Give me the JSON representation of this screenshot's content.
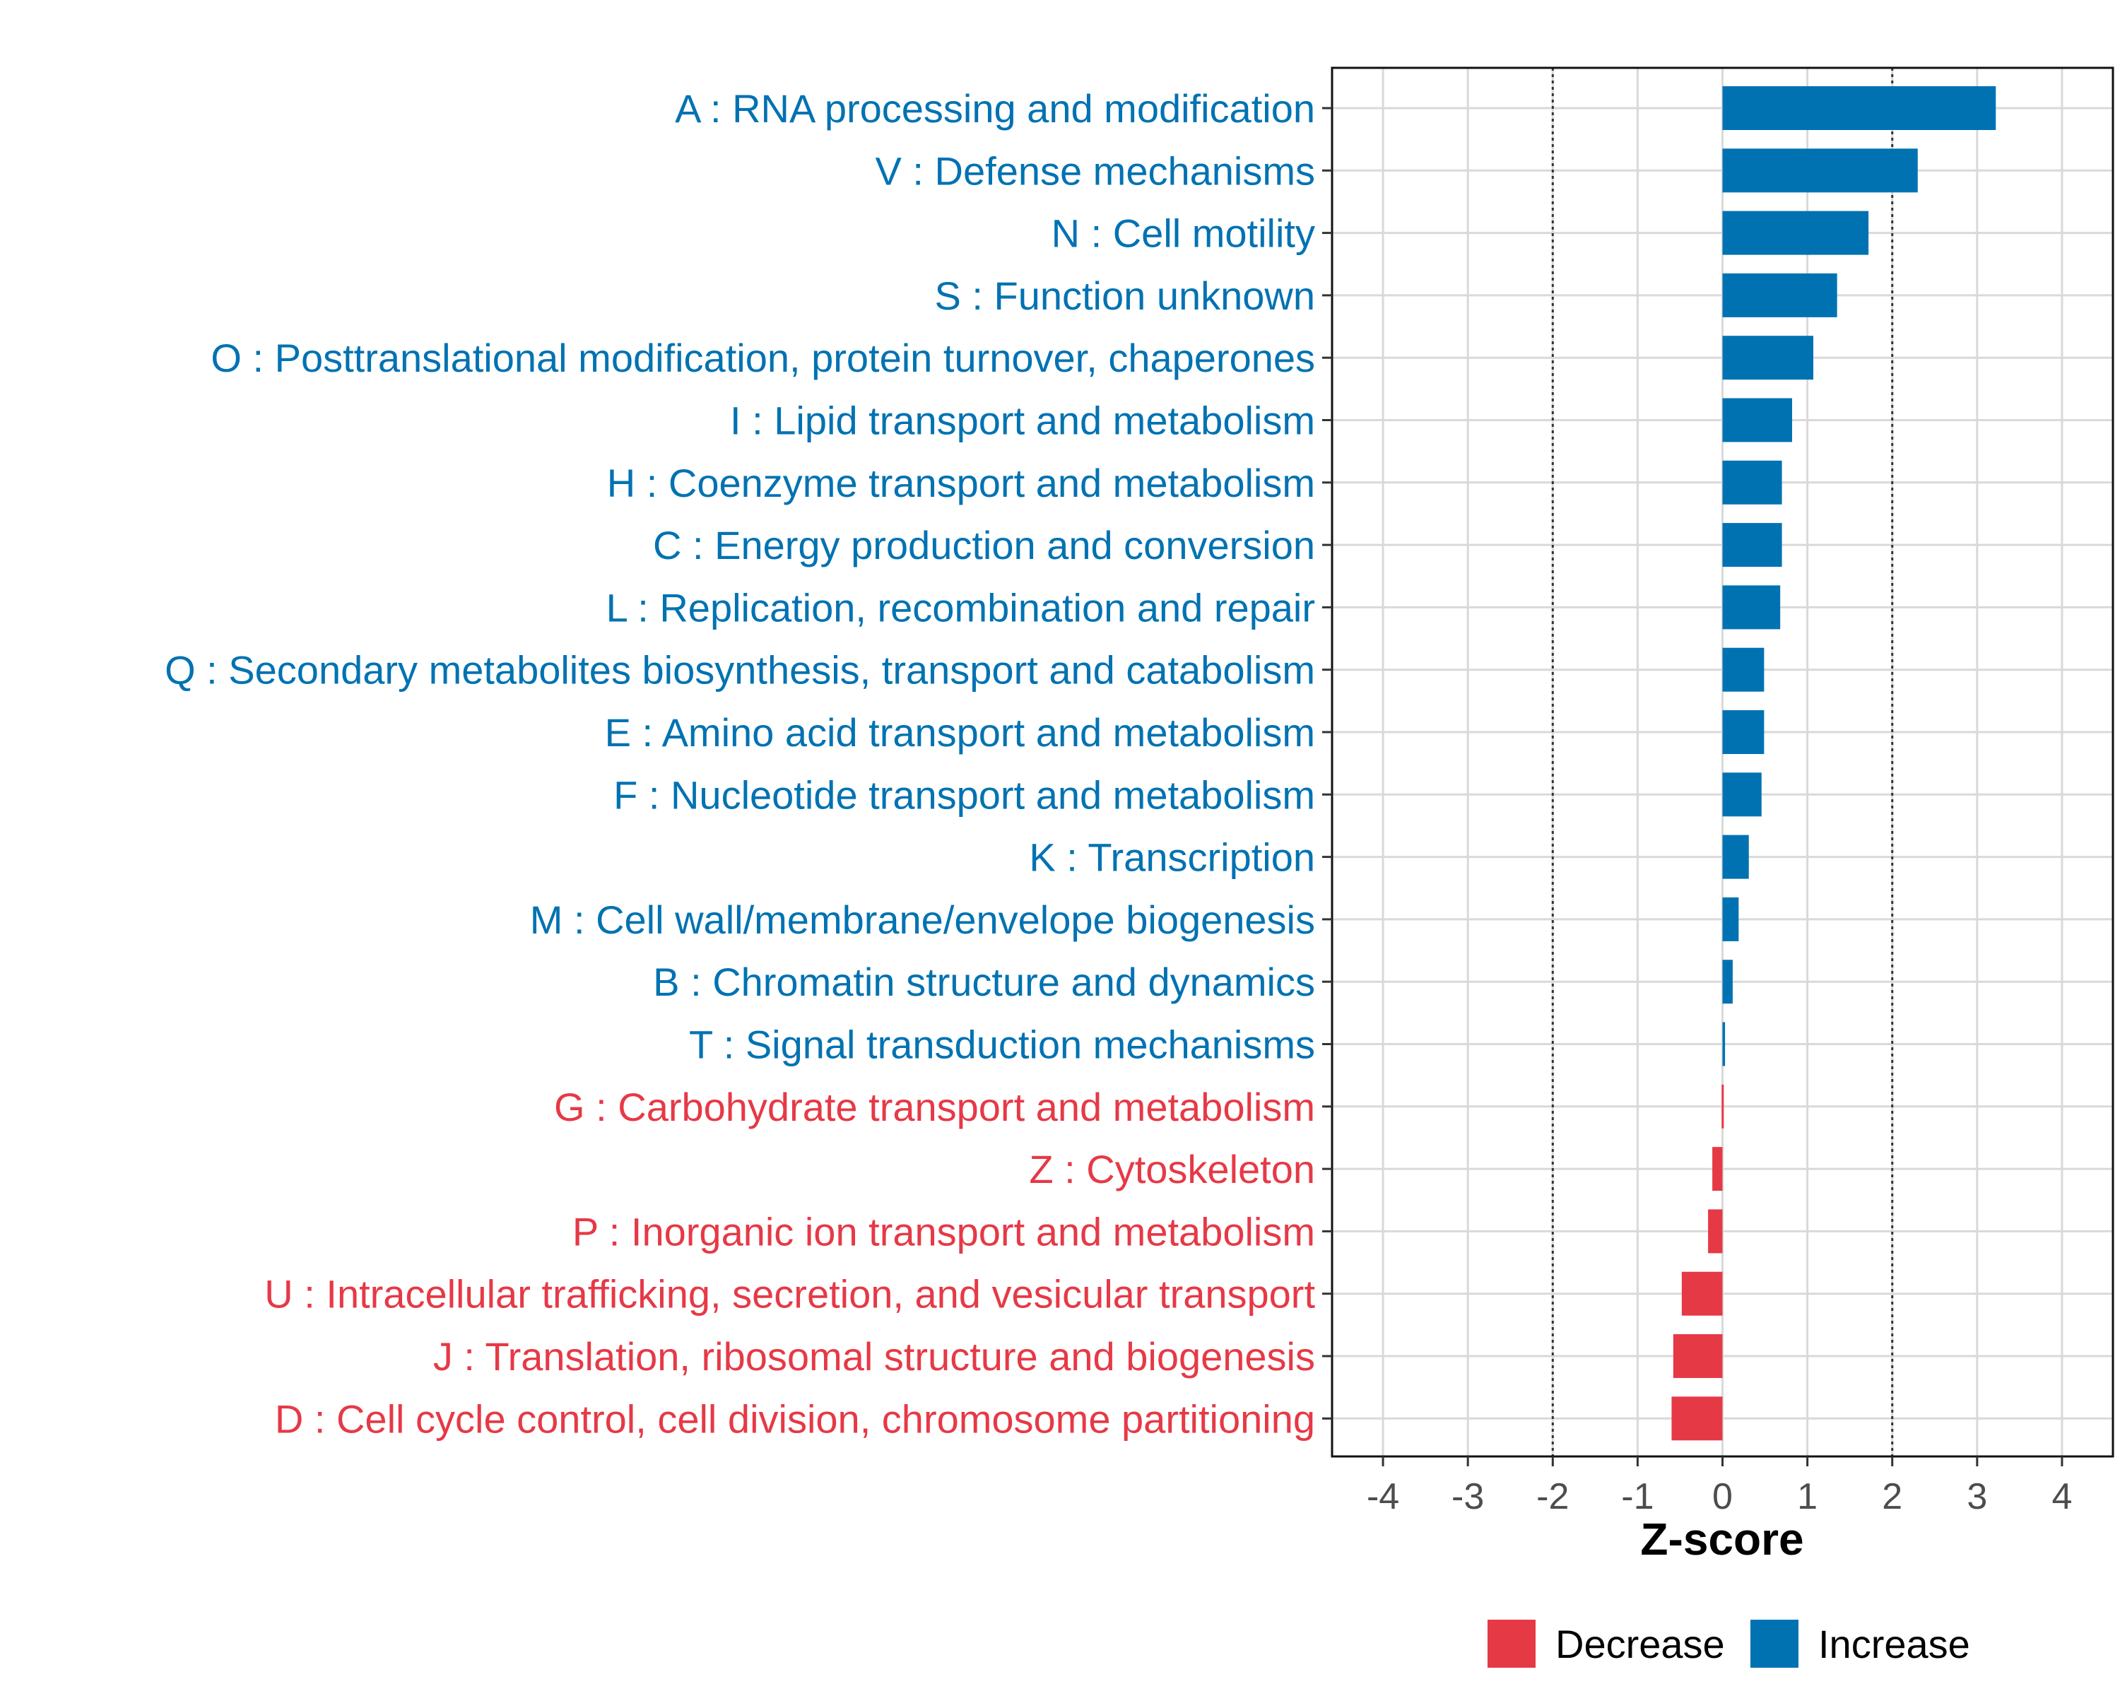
{
  "chart_data": {
    "type": "bar",
    "orientation": "horizontal",
    "title": "",
    "xlabel": "Z-score",
    "ylabel": "",
    "xlim": [
      -4.6,
      4.6
    ],
    "x_ticks": [
      -4,
      -3,
      -2,
      -1,
      0,
      1,
      2,
      3,
      4
    ],
    "x_tick_labels": [
      "-4",
      "-3",
      "-2",
      "-1",
      "0",
      "1",
      "2",
      "3",
      "4"
    ],
    "reference_lines": [
      -2,
      2
    ],
    "grid": true,
    "colors": {
      "Increase": "#0072B2",
      "Decrease": "#E63946"
    },
    "categories": [
      "A : RNA processing and modification",
      "V : Defense mechanisms",
      "N : Cell motility",
      "S : Function unknown",
      "O : Posttranslational modification, protein turnover, chaperones",
      "I : Lipid transport and metabolism",
      "H : Coenzyme transport and metabolism",
      "C : Energy production and conversion",
      "L : Replication, recombination and repair",
      "Q : Secondary metabolites biosynthesis, transport and catabolism",
      "E : Amino acid transport and metabolism",
      "F : Nucleotide transport and metabolism",
      "K : Transcription",
      "M : Cell wall/membrane/envelope biogenesis",
      "B : Chromatin structure and dynamics",
      "T : Signal transduction mechanisms",
      "G : Carbohydrate transport and metabolism",
      "Z : Cytoskeleton",
      "P : Inorganic ion transport and metabolism",
      "U : Intracellular trafficking, secretion, and vesicular transport",
      "J : Translation, ribosomal structure and biogenesis",
      "D : Cell cycle control, cell division, chromosome partitioning"
    ],
    "values": [
      3.22,
      2.3,
      1.72,
      1.35,
      1.07,
      0.82,
      0.7,
      0.7,
      0.68,
      0.49,
      0.49,
      0.46,
      0.31,
      0.19,
      0.12,
      0.03,
      -0.01,
      -0.12,
      -0.17,
      -0.48,
      -0.58,
      -0.6
    ],
    "groups": [
      "Increase",
      "Increase",
      "Increase",
      "Increase",
      "Increase",
      "Increase",
      "Increase",
      "Increase",
      "Increase",
      "Increase",
      "Increase",
      "Increase",
      "Increase",
      "Increase",
      "Increase",
      "Increase",
      "Decrease",
      "Decrease",
      "Decrease",
      "Decrease",
      "Decrease",
      "Decrease"
    ],
    "legend": {
      "position": "bottom",
      "entries": [
        {
          "label": "Decrease",
          "color": "#E63946"
        },
        {
          "label": "Increase",
          "color": "#0072B2"
        }
      ]
    }
  }
}
